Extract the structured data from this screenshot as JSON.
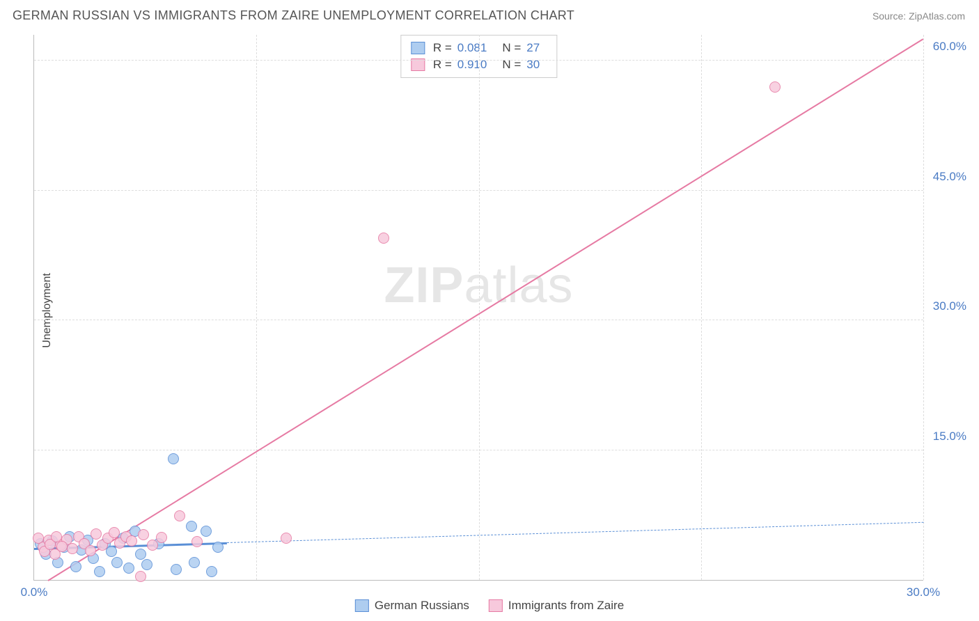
{
  "title": "GERMAN RUSSIAN VS IMMIGRANTS FROM ZAIRE UNEMPLOYMENT CORRELATION CHART",
  "source": "Source: ZipAtlas.com",
  "ylabel": "Unemployment",
  "watermark_a": "ZIP",
  "watermark_b": "atlas",
  "chart": {
    "type": "scatter",
    "xlim": [
      0,
      30
    ],
    "ylim": [
      0,
      63
    ],
    "xticks": [
      {
        "v": 0,
        "l": "0.0%"
      },
      {
        "v": 30,
        "l": "30.0%"
      }
    ],
    "yticks": [
      {
        "v": 15,
        "l": "15.0%"
      },
      {
        "v": 30,
        "l": "30.0%"
      },
      {
        "v": 45,
        "l": "45.0%"
      },
      {
        "v": 60,
        "l": "60.0%"
      }
    ],
    "vgrid": [
      7.5,
      15,
      22.5,
      30
    ],
    "background_color": "#ffffff",
    "grid_color": "#dddddd",
    "axis_color": "#bbbbbb",
    "tick_color": "#4a7bc4",
    "marker_radius": 8,
    "marker_stroke": 1.2,
    "marker_fill_opacity": 0.35
  },
  "series": [
    {
      "name": "German Russians",
      "color_stroke": "#5a8fd6",
      "color_fill": "#aecdf0",
      "R": "0.081",
      "N": "27",
      "trend": {
        "y_intercept": 3.7,
        "slope": 0.1,
        "solid_until_x": 6.5,
        "width_solid": 3,
        "width_dashed": 1.4
      },
      "points": [
        {
          "x": 0.2,
          "y": 4.2
        },
        {
          "x": 0.4,
          "y": 3.0
        },
        {
          "x": 0.6,
          "y": 4.5
        },
        {
          "x": 0.8,
          "y": 2.0
        },
        {
          "x": 1.0,
          "y": 3.8
        },
        {
          "x": 1.2,
          "y": 5.0
        },
        {
          "x": 1.4,
          "y": 1.5
        },
        {
          "x": 1.6,
          "y": 3.5
        },
        {
          "x": 1.8,
          "y": 4.6
        },
        {
          "x": 2.0,
          "y": 2.5
        },
        {
          "x": 2.2,
          "y": 1.0
        },
        {
          "x": 2.4,
          "y": 4.2
        },
        {
          "x": 2.6,
          "y": 3.3
        },
        {
          "x": 2.8,
          "y": 2.0
        },
        {
          "x": 3.0,
          "y": 4.8
        },
        {
          "x": 3.2,
          "y": 1.4
        },
        {
          "x": 3.4,
          "y": 5.6
        },
        {
          "x": 3.6,
          "y": 3.0
        },
        {
          "x": 3.8,
          "y": 1.8
        },
        {
          "x": 4.2,
          "y": 4.2
        },
        {
          "x": 4.7,
          "y": 14.0
        },
        {
          "x": 4.8,
          "y": 1.2
        },
        {
          "x": 5.3,
          "y": 6.2
        },
        {
          "x": 5.4,
          "y": 2.0
        },
        {
          "x": 5.8,
          "y": 5.6
        },
        {
          "x": 6.0,
          "y": 1.0
        },
        {
          "x": 6.2,
          "y": 3.8
        }
      ]
    },
    {
      "name": "Immigrants from Zaire",
      "color_stroke": "#e67aa3",
      "color_fill": "#f7c9dc",
      "R": "0.910",
      "N": "30",
      "trend": {
        "y_intercept": -1.0,
        "slope": 2.12,
        "solid_until_x": 30,
        "width_solid": 2.2,
        "width_dashed": 0
      },
      "points": [
        {
          "x": 0.3,
          "y": 3.8
        },
        {
          "x": 0.5,
          "y": 4.6
        },
        {
          "x": 0.7,
          "y": 3.0
        },
        {
          "x": 0.9,
          "y": 4.0
        },
        {
          "x": 1.1,
          "y": 4.7
        },
        {
          "x": 1.3,
          "y": 3.6
        },
        {
          "x": 1.5,
          "y": 5.0
        },
        {
          "x": 1.7,
          "y": 4.2
        },
        {
          "x": 1.9,
          "y": 3.4
        },
        {
          "x": 2.1,
          "y": 5.3
        },
        {
          "x": 2.3,
          "y": 4.0
        },
        {
          "x": 2.5,
          "y": 4.8
        },
        {
          "x": 2.7,
          "y": 5.5
        },
        {
          "x": 2.9,
          "y": 4.3
        },
        {
          "x": 3.1,
          "y": 5.0
        },
        {
          "x": 3.3,
          "y": 4.5
        },
        {
          "x": 3.6,
          "y": 0.4
        },
        {
          "x": 3.7,
          "y": 5.2
        },
        {
          "x": 4.0,
          "y": 4.0
        },
        {
          "x": 4.3,
          "y": 4.9
        },
        {
          "x": 4.9,
          "y": 7.4
        },
        {
          "x": 5.5,
          "y": 4.4
        },
        {
          "x": 8.5,
          "y": 4.8
        },
        {
          "x": 11.8,
          "y": 39.5
        },
        {
          "x": 25.0,
          "y": 57.0
        },
        {
          "x": 0.15,
          "y": 4.8
        },
        {
          "x": 0.35,
          "y": 3.3
        },
        {
          "x": 0.55,
          "y": 4.1
        },
        {
          "x": 0.75,
          "y": 5.0
        },
        {
          "x": 0.95,
          "y": 3.9
        }
      ]
    }
  ],
  "legend_top": {
    "r_label": "R =",
    "n_label": "N ="
  },
  "legend_bottom": [
    {
      "label": "German Russians",
      "series": 0
    },
    {
      "label": "Immigrants from Zaire",
      "series": 1
    }
  ]
}
